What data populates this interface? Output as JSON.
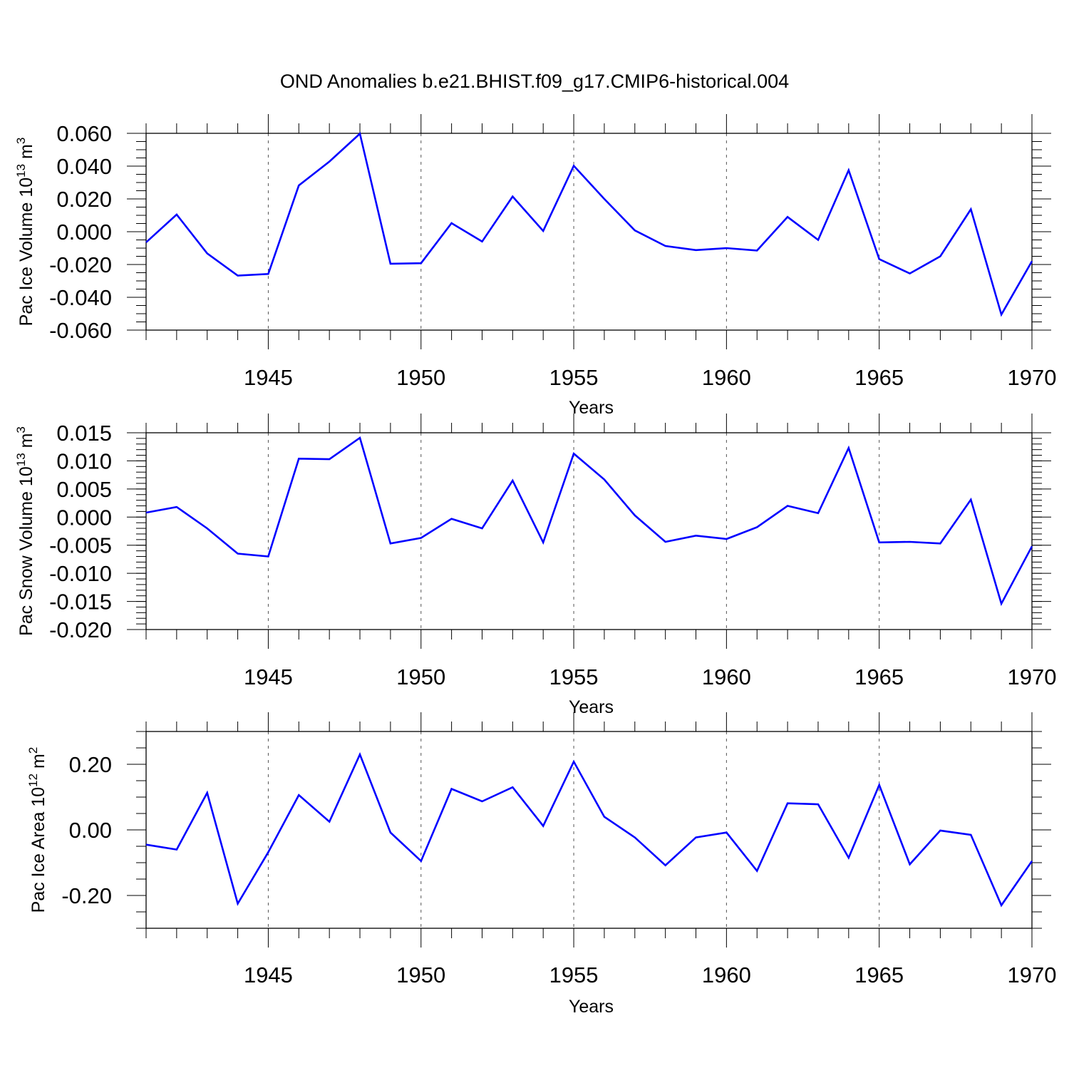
{
  "title": "OND Anomalies b.e21.BHIST.f09_g17.CMIP6-historical.004",
  "line_color": "#0000ff",
  "chart_data": [
    {
      "type": "line",
      "series_name": "Pac Ice Volume",
      "ylabel_base": "Pac Ice Volume 10",
      "ylabel_exp": "13",
      "ylabel_unit": " m",
      "ylabel_unit_exp": "3",
      "xlabel": "Years",
      "xlim": [
        1941,
        1970
      ],
      "ylim": [
        -0.06,
        0.06
      ],
      "ytick_values": [
        -0.06,
        -0.04,
        -0.02,
        0.0,
        0.02,
        0.04,
        0.06
      ],
      "ytick_labels": [
        "-0.060",
        "-0.040",
        "-0.020",
        "0.000",
        "0.020",
        "0.040",
        "0.060"
      ],
      "yminor_step": 0.005,
      "xtick_values": [
        1945,
        1950,
        1955,
        1960,
        1965,
        1970
      ],
      "xtick_labels": [
        "1945",
        "1950",
        "1955",
        "1960",
        "1965",
        "1970"
      ],
      "vgrid_years": [
        1945,
        1950,
        1955,
        1960,
        1965
      ],
      "x": [
        1941,
        1942,
        1943,
        1944,
        1945,
        1946,
        1947,
        1948,
        1949,
        1950,
        1951,
        1952,
        1953,
        1954,
        1955,
        1956,
        1957,
        1958,
        1959,
        1960,
        1961,
        1962,
        1963,
        1964,
        1965,
        1966,
        1967,
        1968,
        1969,
        1970
      ],
      "y": [
        -0.0065,
        0.0105,
        -0.0132,
        -0.0268,
        -0.0258,
        0.0282,
        0.0428,
        0.0598,
        -0.0195,
        -0.0192,
        0.0052,
        -0.006,
        0.0215,
        0.0005,
        0.0402,
        0.02,
        0.0008,
        -0.0087,
        -0.0112,
        -0.01,
        -0.0115,
        0.009,
        -0.005,
        0.0375,
        -0.0167,
        -0.0255,
        -0.015,
        0.0137,
        -0.0505,
        -0.018
      ]
    },
    {
      "type": "line",
      "series_name": "Pac Snow Volume",
      "ylabel_base": "Pac Snow Volume 10",
      "ylabel_exp": "13",
      "ylabel_unit": " m",
      "ylabel_unit_exp": "3",
      "xlabel": "Years",
      "xlim": [
        1941,
        1970
      ],
      "ylim": [
        -0.02,
        0.015
      ],
      "ytick_values": [
        -0.02,
        -0.015,
        -0.01,
        -0.005,
        0.0,
        0.005,
        0.01,
        0.015
      ],
      "ytick_labels": [
        "-0.020",
        "-0.015",
        "-0.010",
        "-0.005",
        "0.000",
        "0.005",
        "0.010",
        "0.015"
      ],
      "yminor_step": 0.001,
      "xtick_values": [
        1945,
        1950,
        1955,
        1960,
        1965,
        1970
      ],
      "xtick_labels": [
        "1945",
        "1950",
        "1955",
        "1960",
        "1965",
        "1970"
      ],
      "vgrid_years": [
        1945,
        1950,
        1955,
        1960,
        1965
      ],
      "x": [
        1941,
        1942,
        1943,
        1944,
        1945,
        1946,
        1947,
        1948,
        1949,
        1950,
        1951,
        1952,
        1953,
        1954,
        1955,
        1956,
        1957,
        1958,
        1959,
        1960,
        1961,
        1962,
        1963,
        1964,
        1965,
        1966,
        1967,
        1968,
        1969,
        1970
      ],
      "y": [
        0.0008,
        0.0018,
        -0.002,
        -0.0065,
        -0.007,
        0.0104,
        0.0103,
        0.0141,
        -0.0047,
        -0.0037,
        -0.0003,
        -0.002,
        0.0065,
        -0.0045,
        0.0113,
        0.0067,
        0.0003,
        -0.0044,
        -0.0033,
        -0.0039,
        -0.0018,
        0.002,
        0.0007,
        0.0123,
        -0.0045,
        -0.0044,
        -0.0047,
        0.0031,
        -0.0154,
        -0.0052
      ]
    },
    {
      "type": "line",
      "series_name": "Pac Ice Area",
      "ylabel_base": "Pac Ice Area 10",
      "ylabel_exp": "12",
      "ylabel_unit": " m",
      "ylabel_unit_exp": "2",
      "xlabel": "Years",
      "xlim": [
        1941,
        1970
      ],
      "ylim": [
        -0.3,
        0.3
      ],
      "ytick_values": [
        -0.2,
        0.0,
        0.2
      ],
      "ytick_labels": [
        "-0.20",
        "0.00",
        "0.20"
      ],
      "yminor_step": 0.05,
      "xtick_values": [
        1945,
        1950,
        1955,
        1960,
        1965,
        1970
      ],
      "xtick_labels": [
        "1945",
        "1950",
        "1955",
        "1960",
        "1965",
        "1970"
      ],
      "vgrid_years": [
        1945,
        1950,
        1955,
        1960,
        1965
      ],
      "x": [
        1941,
        1942,
        1943,
        1944,
        1945,
        1946,
        1947,
        1948,
        1949,
        1950,
        1951,
        1952,
        1953,
        1954,
        1955,
        1956,
        1957,
        1958,
        1959,
        1960,
        1961,
        1962,
        1963,
        1964,
        1965,
        1966,
        1967,
        1968,
        1969,
        1970
      ],
      "y": [
        -0.045,
        -0.06,
        0.113,
        -0.225,
        -0.068,
        0.106,
        0.025,
        0.23,
        -0.008,
        -0.095,
        0.125,
        0.087,
        0.13,
        0.012,
        0.208,
        0.04,
        -0.023,
        -0.108,
        -0.023,
        -0.008,
        -0.125,
        0.081,
        0.078,
        -0.085,
        0.137,
        -0.105,
        -0.002,
        -0.015,
        -0.23,
        -0.095
      ]
    }
  ]
}
